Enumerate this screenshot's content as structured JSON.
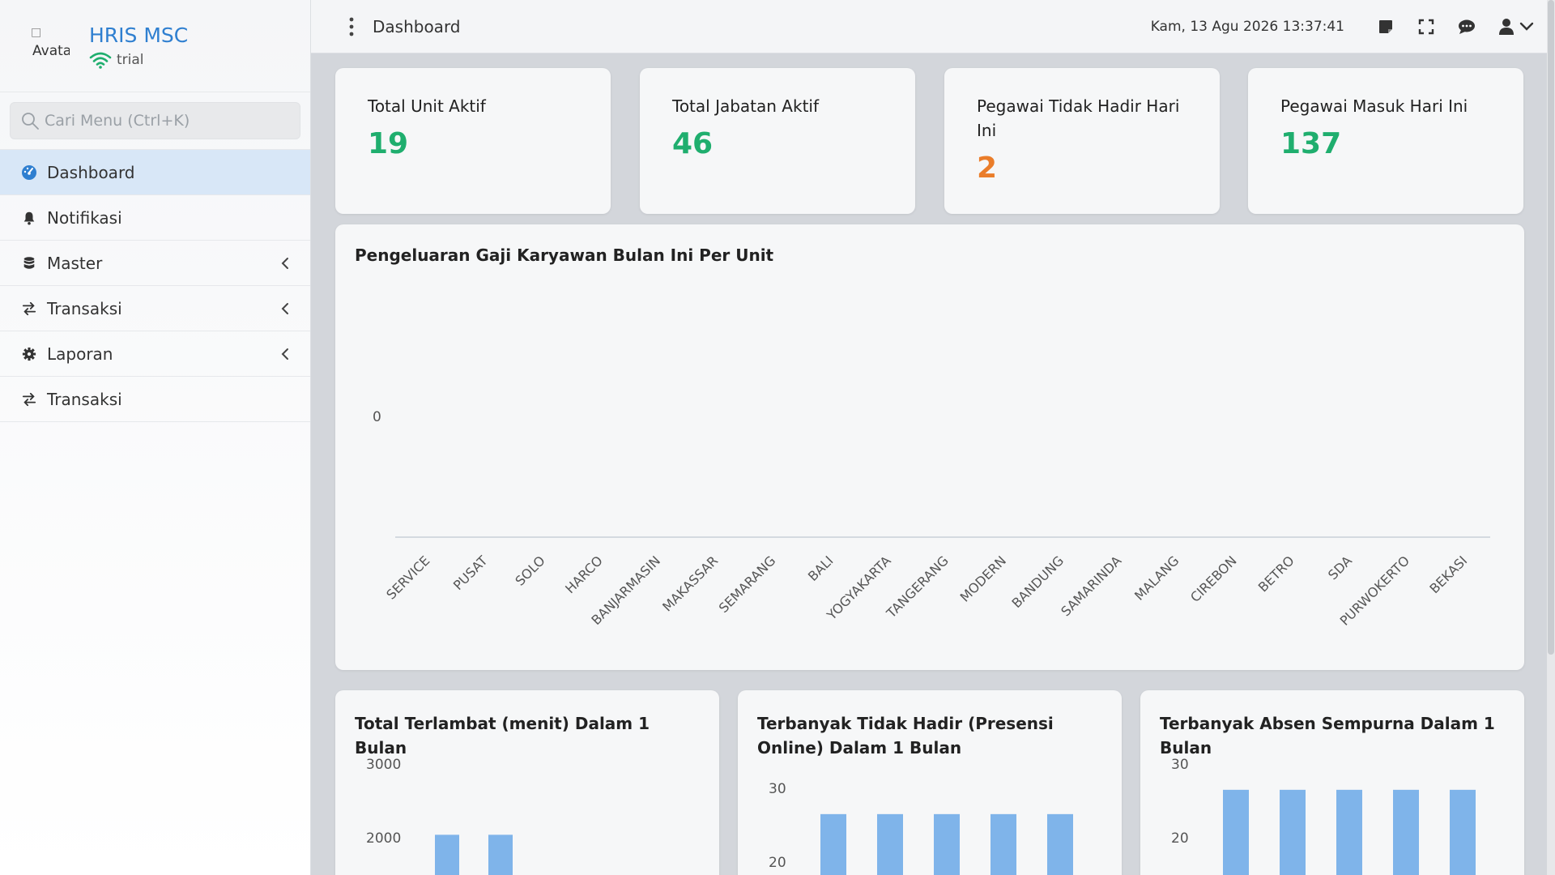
{
  "app": {
    "name": "HRIS MSC",
    "status": "trial",
    "avatar_alt": "Avatar"
  },
  "search": {
    "placeholder": "Cari Menu (Ctrl+K)"
  },
  "sidebar": {
    "items": [
      {
        "label": "Dashboard",
        "icon": "dashboard-icon",
        "active": true
      },
      {
        "label": "Notifikasi",
        "icon": "bell-icon"
      },
      {
        "label": "Master",
        "icon": "database-icon",
        "chevron": true
      },
      {
        "label": "Transaksi",
        "icon": "exchange-icon",
        "chevron": true
      },
      {
        "label": "Laporan",
        "icon": "gear-icon",
        "chevron": true
      },
      {
        "label": "Transaksi",
        "icon": "exchange-icon"
      }
    ]
  },
  "header": {
    "breadcrumb": "Dashboard",
    "datetime": "Kam, 13 Agu 2026 13:37:41",
    "icons": [
      "sticky-note-icon",
      "fullscreen-icon",
      "chat-icon",
      "user-icon"
    ]
  },
  "stats": [
    {
      "title": "Total Unit Aktif",
      "value": "19",
      "color": "#1fae6e"
    },
    {
      "title": "Total Jabatan Aktif",
      "value": "46",
      "color": "#1fae6e"
    },
    {
      "title": "Pegawai Tidak Hadir Hari Ini",
      "value": "2",
      "color": "#ea7d2a"
    },
    {
      "title": "Pegawai Masuk Hari Ini",
      "value": "137",
      "color": "#1fae6e"
    }
  ],
  "chart_data": [
    {
      "type": "bar",
      "title": "Pengeluaran Gaji Karyawan Bulan Ini Per Unit",
      "categories": [
        "SERVICE",
        "PUSAT",
        "SOLO",
        "HARCO",
        "BANJARMASIN",
        "MAKASSAR",
        "SEMARANG",
        "BALI",
        "YOGYAKARTA",
        "TANGERANG",
        "MODERN",
        "BANDUNG",
        "SAMARINDA",
        "MALANG",
        "CIREBON",
        "BETRO",
        "SDA",
        "PURWOKERTO",
        "BEKASI"
      ],
      "values": [
        0,
        0,
        0,
        0,
        0,
        0,
        0,
        0,
        0,
        0,
        0,
        0,
        0,
        0,
        0,
        0,
        0,
        0,
        0
      ],
      "yticks": [
        "0"
      ],
      "grid": false
    },
    {
      "type": "bar",
      "title": "Total Terlambat (menit) Dalam 1 Bulan",
      "yticks": [
        3000,
        2000
      ],
      "values": [
        2040,
        2040
      ],
      "color": "#7fb4ea"
    },
    {
      "type": "bar",
      "title": "Terbanyak Tidak Hadir (Presensi Online) Dalam 1 Bulan",
      "yticks": [
        30,
        20
      ],
      "values": [
        26.5,
        26.5,
        26.5,
        26.5,
        26.5
      ],
      "color": "#7fb4ea"
    },
    {
      "type": "bar",
      "title": "Terbanyak Absen Sempurna Dalam 1 Bulan",
      "yticks": [
        30,
        20
      ],
      "values": [
        26.5,
        26.5,
        26.5,
        26.5,
        26.5
      ],
      "color": "#7fb4ea"
    }
  ]
}
